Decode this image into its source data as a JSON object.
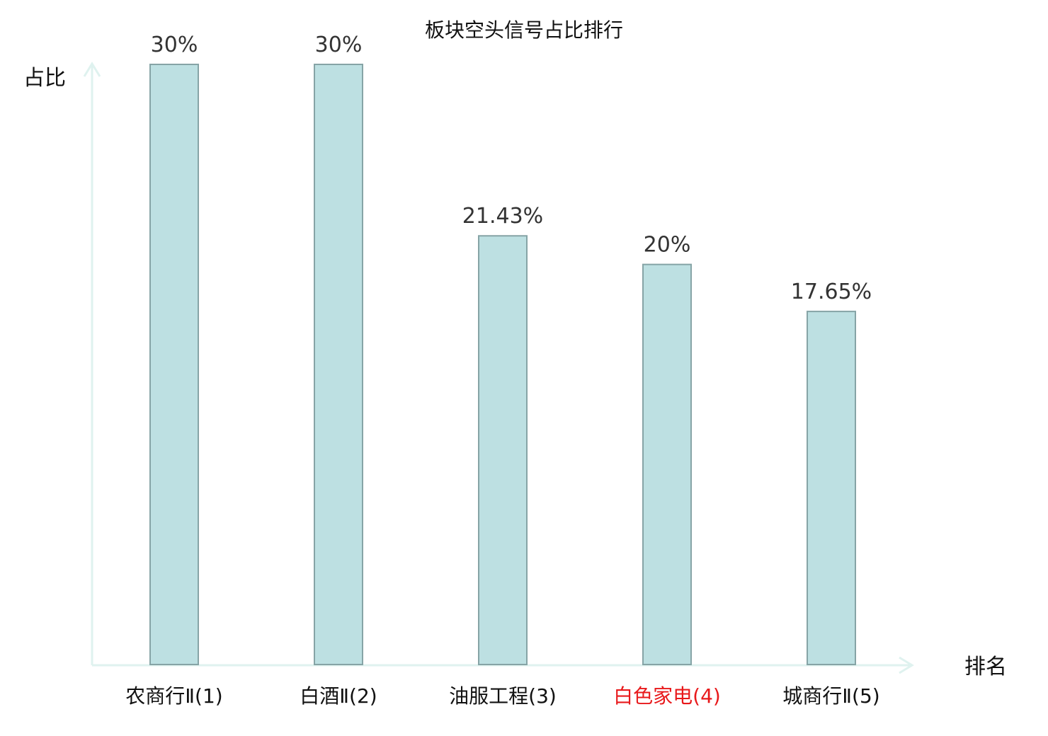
{
  "chart_data": {
    "type": "bar",
    "title": "板块空头信号占比排行",
    "xlabel": "排名",
    "ylabel": "占比",
    "categories": [
      "农商行Ⅱ(1)",
      "白酒Ⅱ(2)",
      "油服工程(3)",
      "白色家电(4)",
      "城商行Ⅱ(5)"
    ],
    "values": [
      30,
      30,
      21.43,
      20,
      17.65
    ],
    "value_labels": [
      "30%",
      "30%",
      "21.43%",
      "20%",
      "17.65%"
    ],
    "category_colors": [
      "#111111",
      "#111111",
      "#111111",
      "#e8191b",
      "#111111"
    ],
    "ylim": [
      0,
      30
    ],
    "grid": false,
    "legend": "none",
    "colors": {
      "bar_fill": "#bde0e2",
      "bar_stroke": "#86a4a6",
      "axis": "#dff2ef",
      "highlight": "#e8191b"
    }
  }
}
